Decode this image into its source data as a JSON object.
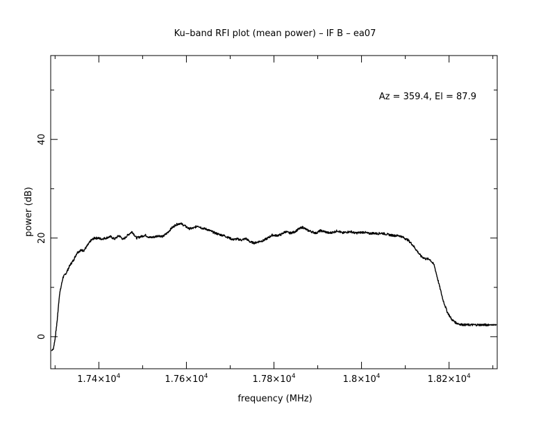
{
  "chart_data": {
    "type": "line",
    "title": "Ku–band RFI plot (mean power) – IF B – ea07",
    "xlabel": "frequency (MHz)",
    "ylabel": "power (dB)",
    "annotation": "Az = 359.4, El = 87.9",
    "xlim": [
      17290,
      18310
    ],
    "ylim": [
      -6.5,
      57
    ],
    "x_ticks": [
      {
        "value": 17400,
        "mantissa": "1.74",
        "exponent": "4"
      },
      {
        "value": 17600,
        "mantissa": "1.76",
        "exponent": "4"
      },
      {
        "value": 17800,
        "mantissa": "1.78",
        "exponent": "4"
      },
      {
        "value": 18000,
        "mantissa": "1.8",
        "exponent": "4"
      },
      {
        "value": 18200,
        "mantissa": "1.82",
        "exponent": "4"
      }
    ],
    "x_minor_ticks": [
      17300,
      17500,
      17700,
      17900,
      18100,
      18300
    ],
    "y_ticks": [
      {
        "value": 0,
        "label": "0"
      },
      {
        "value": 20,
        "label": "20"
      },
      {
        "value": 40,
        "label": "40"
      }
    ],
    "y_minor_ticks": [
      10,
      30,
      50
    ],
    "grid": false,
    "series": [
      {
        "color": "#000000",
        "x": [
          17292,
          17296,
          17300,
          17305,
          17310,
          17318,
          17326,
          17334,
          17342,
          17350,
          17358,
          17366,
          17374,
          17382,
          17390,
          17398,
          17406,
          17416,
          17426,
          17436,
          17446,
          17456,
          17466,
          17476,
          17486,
          17496,
          17506,
          17516,
          17526,
          17536,
          17546,
          17556,
          17566,
          17576,
          17586,
          17596,
          17606,
          17616,
          17626,
          17636,
          17646,
          17656,
          17666,
          17676,
          17686,
          17696,
          17706,
          17716,
          17726,
          17736,
          17746,
          17756,
          17766,
          17776,
          17786,
          17796,
          17806,
          17816,
          17826,
          17836,
          17846,
          17856,
          17866,
          17876,
          17886,
          17896,
          17906,
          17916,
          17926,
          17936,
          17946,
          17956,
          17966,
          17976,
          17986,
          17996,
          18006,
          18016,
          18026,
          18036,
          18046,
          18056,
          18066,
          18076,
          18086,
          18096,
          18106,
          18116,
          18126,
          18136,
          18146,
          18156,
          18166,
          18176,
          18186,
          18196,
          18206,
          18216,
          18226,
          18236,
          18246,
          18256,
          18266,
          18276,
          18284,
          18290,
          18296,
          18300,
          18304,
          18308
        ],
        "y": [
          -2.8,
          -2.5,
          -0.5,
          3.5,
          8.5,
          12.0,
          13.0,
          14.5,
          15.5,
          17.0,
          17.5,
          17.5,
          18.5,
          19.5,
          20.0,
          20.0,
          19.8,
          20.0,
          20.3,
          19.8,
          20.5,
          19.7,
          20.6,
          21.3,
          20.0,
          20.3,
          20.6,
          20.1,
          20.2,
          20.5,
          20.3,
          21.0,
          22.0,
          22.7,
          23.0,
          22.5,
          21.9,
          22.0,
          22.5,
          22.0,
          21.8,
          21.4,
          21.0,
          20.7,
          20.5,
          20.1,
          19.7,
          19.8,
          19.6,
          19.9,
          19.2,
          19.0,
          19.3,
          19.5,
          20.0,
          20.6,
          20.5,
          20.7,
          21.3,
          21.0,
          21.2,
          21.8,
          22.2,
          21.6,
          21.3,
          21.0,
          21.5,
          21.3,
          21.0,
          21.2,
          21.5,
          21.0,
          21.2,
          21.3,
          21.0,
          21.1,
          21.2,
          20.9,
          21.0,
          20.9,
          21.0,
          20.8,
          20.6,
          20.5,
          20.5,
          20.1,
          19.6,
          18.7,
          17.5,
          16.3,
          15.8,
          15.7,
          14.5,
          11.0,
          7.5,
          5.0,
          3.5,
          2.8,
          2.5,
          2.4,
          2.4,
          2.4,
          2.4,
          2.4,
          2.4,
          2.4,
          2.4,
          2.4,
          2.4,
          2.4
        ]
      }
    ]
  }
}
